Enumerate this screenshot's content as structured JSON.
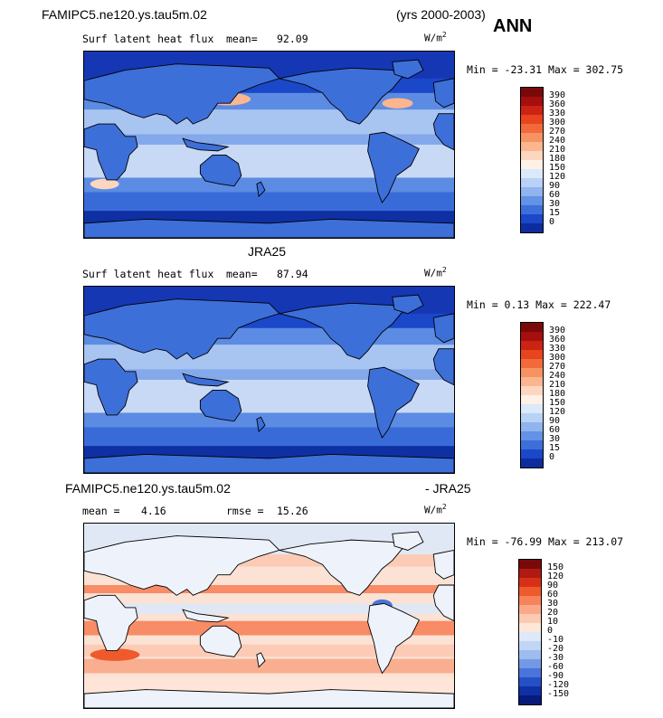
{
  "header": {
    "case_name": "FAMIPC5.ne120.ys.tau5m.02",
    "years": "(yrs 2000-2003)",
    "season": "ANN"
  },
  "panels": [
    {
      "title": "",
      "variable": "Surf latent heat flux",
      "mean_label": "mean=",
      "mean_value": "92.09",
      "rmse_label": "",
      "rmse_value": "",
      "units": "W/m",
      "units_sup": "2",
      "minmax": "Min = -23.31 Max = 302.75",
      "colorbar_labels": [
        "390",
        "360",
        "330",
        "300",
        "270",
        "240",
        "210",
        "180",
        "150",
        "120",
        "90",
        "60",
        "30",
        "15",
        "0"
      ],
      "colorbar_colors": [
        "#7a0a0a",
        "#a50f0f",
        "#cc2412",
        "#e8441d",
        "#f26a3c",
        "#f79262",
        "#fbb58f",
        "#fdd6bf",
        "#fff1e6",
        "#dce9fa",
        "#b8d1f5",
        "#8fb4ee",
        "#6492e6",
        "#3d6fd9",
        "#1b47c9",
        "#0d2d9e"
      ],
      "map_style": "latent_model"
    },
    {
      "title": "JRA25",
      "variable": "Surf latent heat flux",
      "mean_label": "mean=",
      "mean_value": "87.94",
      "rmse_label": "",
      "rmse_value": "",
      "units": "W/m",
      "units_sup": "2",
      "minmax": "Min =   0.13 Max = 222.47",
      "colorbar_labels": [
        "390",
        "360",
        "330",
        "300",
        "270",
        "240",
        "210",
        "180",
        "150",
        "120",
        "90",
        "60",
        "30",
        "15",
        "0"
      ],
      "colorbar_colors": [
        "#7a0a0a",
        "#a50f0f",
        "#cc2412",
        "#e8441d",
        "#f26a3c",
        "#f79262",
        "#fbb58f",
        "#fdd6bf",
        "#fff1e6",
        "#dce9fa",
        "#b8d1f5",
        "#8fb4ee",
        "#6492e6",
        "#3d6fd9",
        "#1b47c9",
        "#0d2d9e"
      ],
      "map_style": "latent_obs"
    },
    {
      "title": "FAMIPC5.ne120.ys.tau5m.02",
      "title_suffix": "- JRA25",
      "variable": "",
      "mean_label": "mean =",
      "mean_value": "4.16",
      "rmse_label": "rmse =",
      "rmse_value": "15.26",
      "units": "W/m",
      "units_sup": "2",
      "minmax": "Min = -76.99 Max = 213.07",
      "colorbar_labels": [
        "150",
        "120",
        "90",
        "60",
        "30",
        "20",
        "10",
        "0",
        "-10",
        "-20",
        "-30",
        "-60",
        "-90",
        "-120",
        "-150"
      ],
      "colorbar_colors": [
        "#7a0a0a",
        "#b01a10",
        "#d83018",
        "#ef5a2c",
        "#f6835a",
        "#faa988",
        "#fcc9b2",
        "#fee6d8",
        "#dde9f8",
        "#c0d6f4",
        "#9dbcef",
        "#7399e6",
        "#4a74da",
        "#2551c7",
        "#1030a6",
        "#081a7a"
      ],
      "map_style": "difference"
    }
  ]
}
